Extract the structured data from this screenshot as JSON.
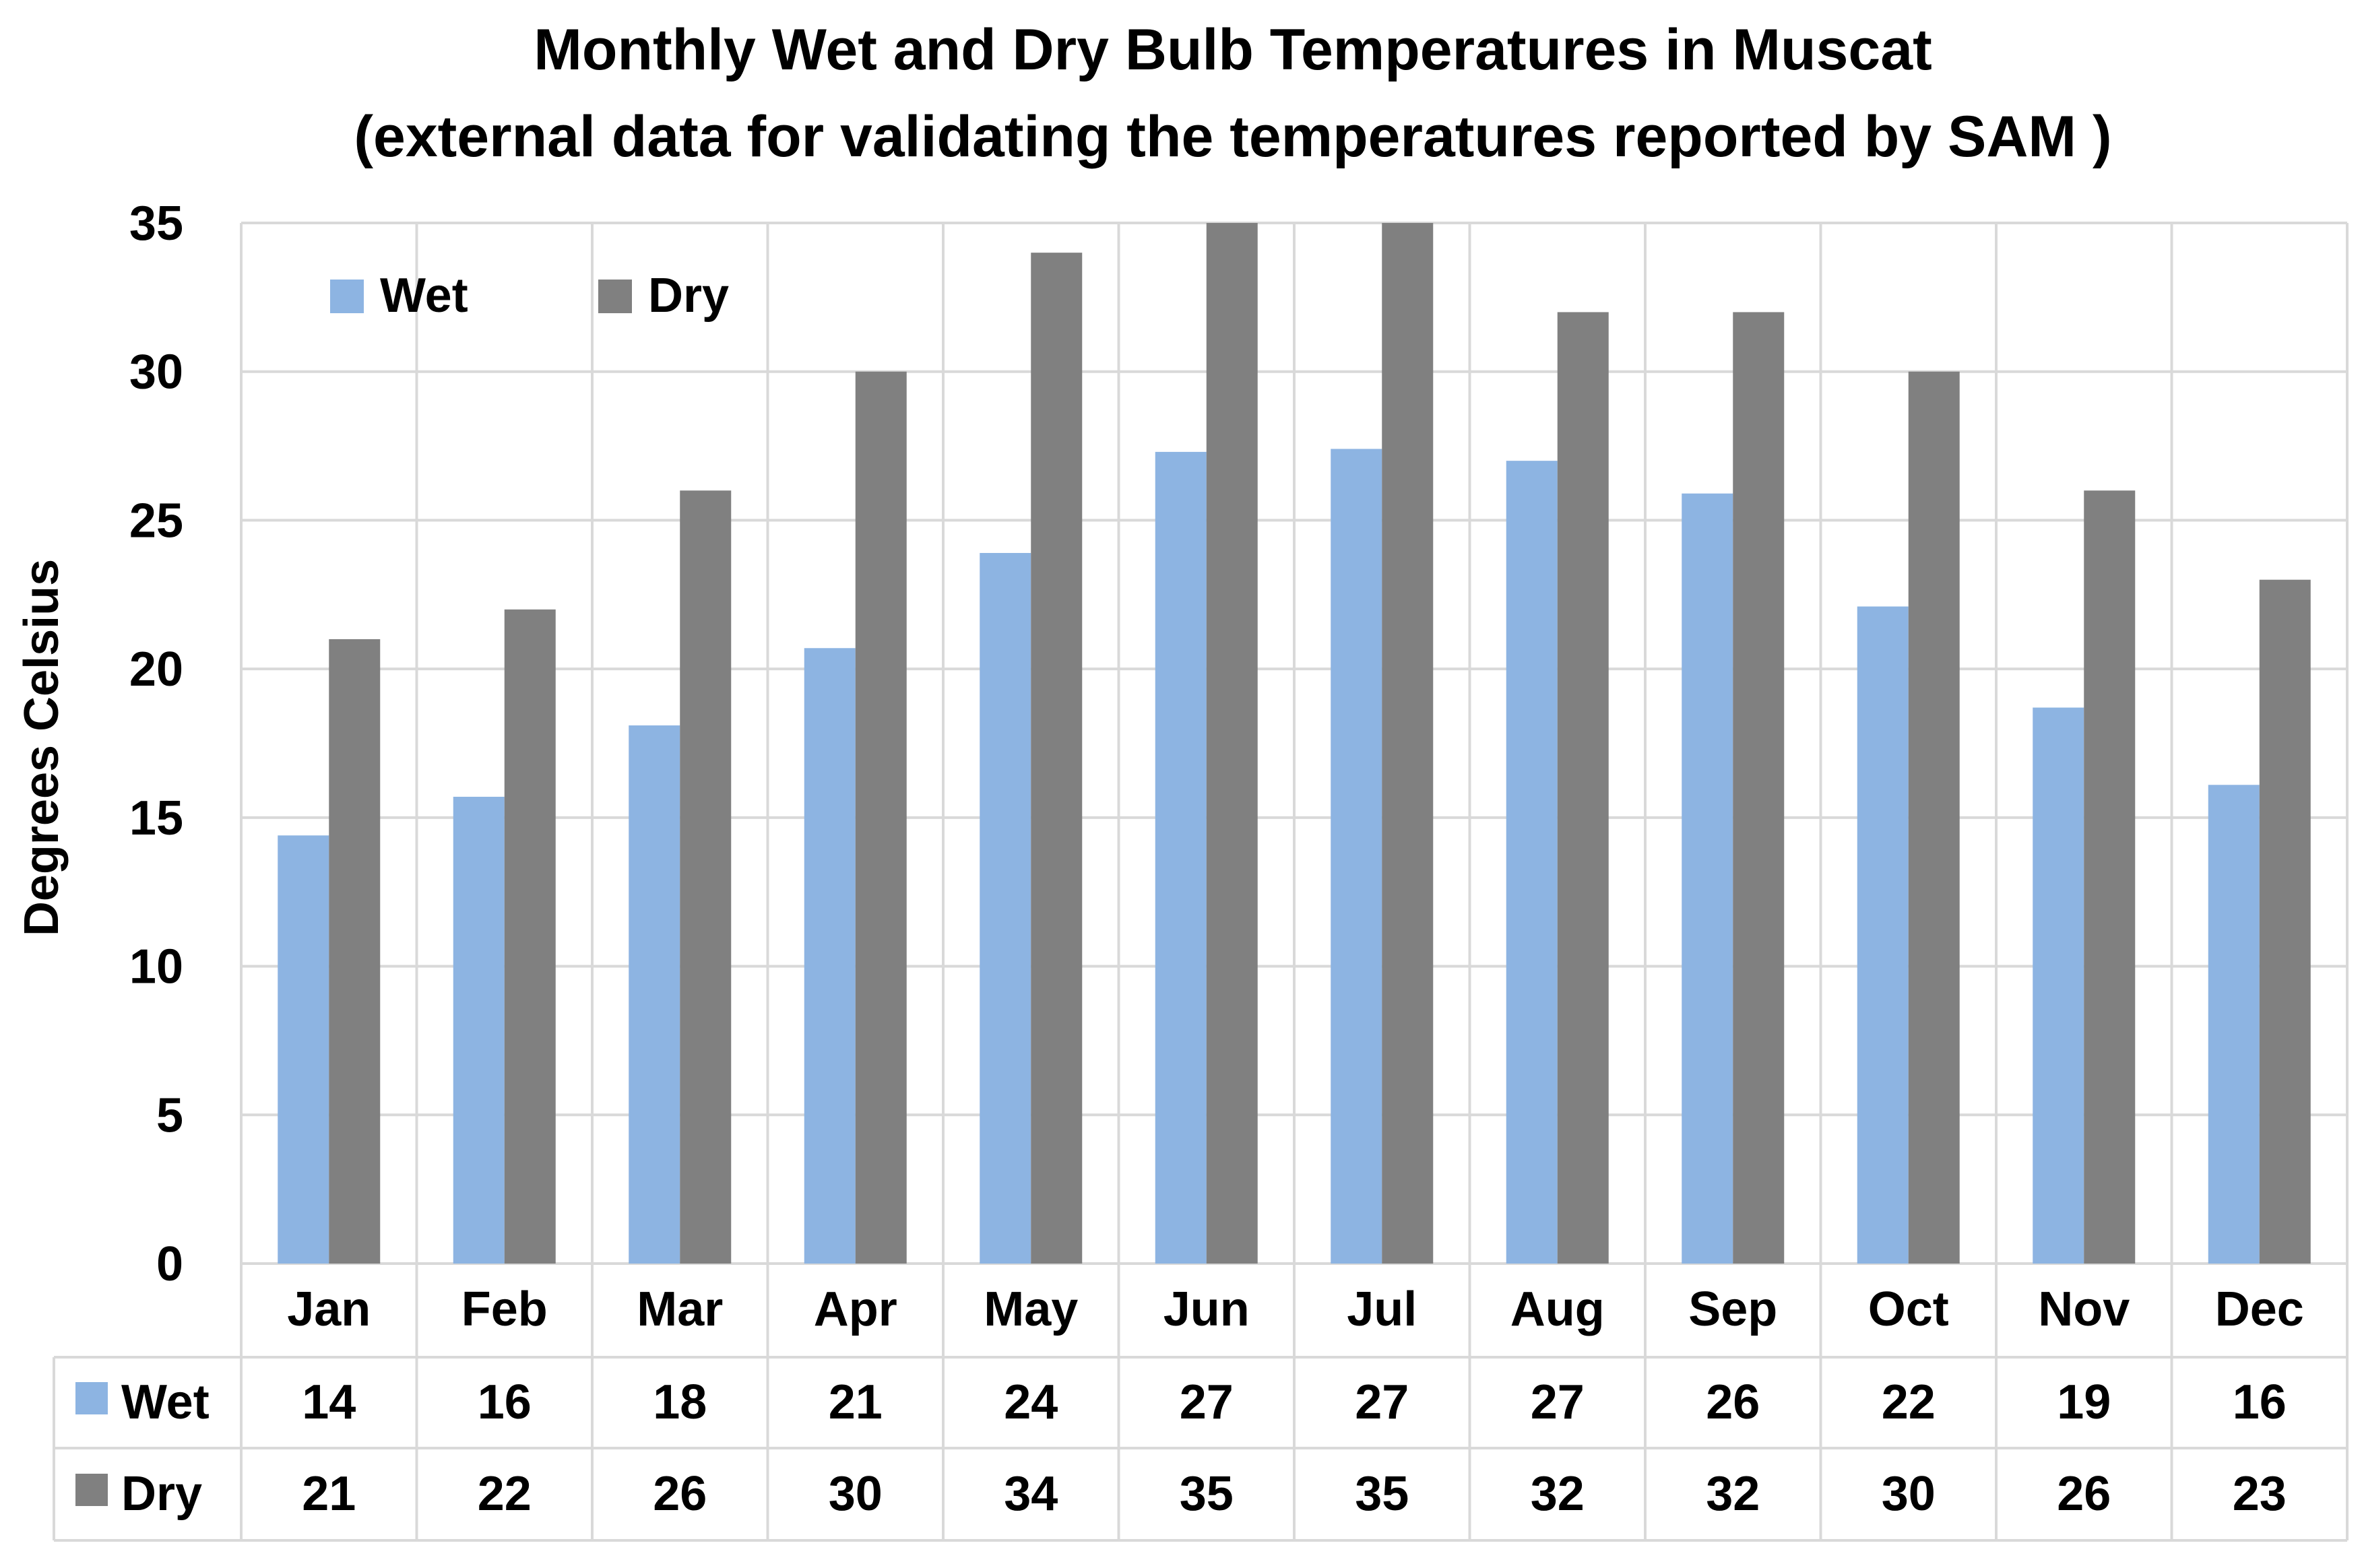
{
  "chart_data": {
    "type": "bar",
    "title": "Monthly Wet and Dry Bulb Temperatures in Muscat",
    "subtitle": "(external data for validating the temperatures reported by SAM )",
    "xlabel": "",
    "ylabel": "Degrees Celsius",
    "ylim": [
      0,
      35
    ],
    "yticks": [
      0,
      5,
      10,
      15,
      20,
      25,
      30,
      35
    ],
    "grid": true,
    "legend_position": "top-left",
    "data_table": true,
    "categories": [
      "Jan",
      "Feb",
      "Mar",
      "Apr",
      "May",
      "Jun",
      "Jul",
      "Aug",
      "Sep",
      "Oct",
      "Nov",
      "Dec"
    ],
    "series": [
      {
        "name": "Wet",
        "color": "#8DB4E2",
        "values": [
          14.4,
          15.7,
          18.1,
          20.7,
          23.9,
          27.3,
          27.4,
          27.0,
          25.9,
          22.1,
          18.7,
          16.1
        ],
        "table_values": [
          "14",
          "16",
          "18",
          "21",
          "24",
          "27",
          "27",
          "27",
          "26",
          "22",
          "19",
          "16"
        ]
      },
      {
        "name": "Dry",
        "color": "#808080",
        "values": [
          21,
          22,
          26,
          30,
          34,
          35,
          35,
          32,
          32,
          30,
          26,
          23
        ],
        "table_values": [
          "21",
          "22",
          "26",
          "30",
          "34",
          "35",
          "35",
          "32",
          "32",
          "30",
          "26",
          "23"
        ]
      }
    ]
  }
}
